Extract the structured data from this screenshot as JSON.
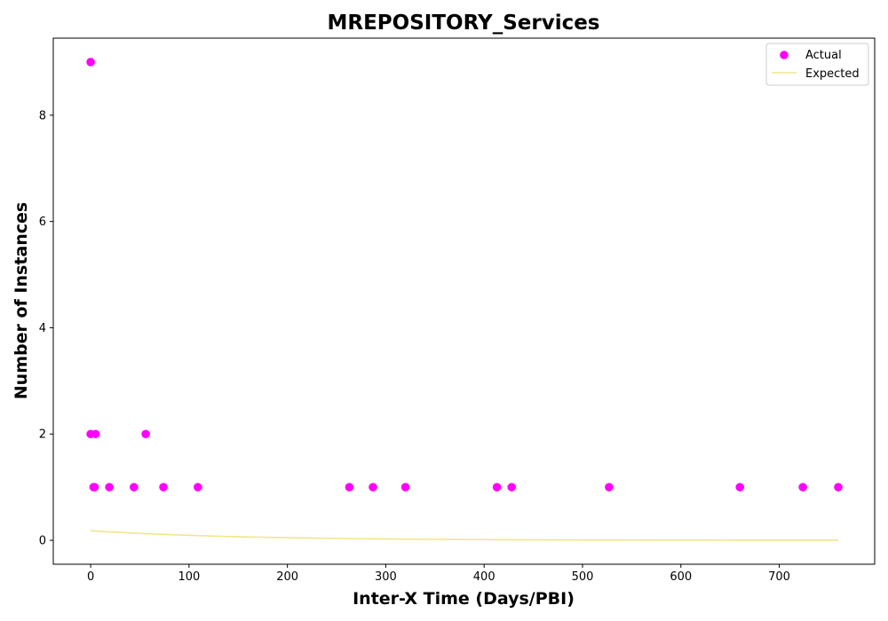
{
  "chart_data": {
    "type": "scatter",
    "title": "MREPOSITORY_Services",
    "xlabel": "Inter-X Time (Days/PBI)",
    "ylabel": "Number of Instances",
    "xlim": [
      -38,
      797
    ],
    "ylim": [
      -0.45,
      9.45
    ],
    "xticks": [
      0,
      100,
      200,
      300,
      400,
      500,
      600,
      700
    ],
    "yticks": [
      0,
      2,
      4,
      6,
      8
    ],
    "grid": false,
    "legend": {
      "placement": "top-right",
      "entries": [
        "Actual",
        "Expected"
      ]
    },
    "series": [
      {
        "name": "Actual",
        "kind": "scatter",
        "color": "#ff00ff",
        "points": [
          [
            0,
            9
          ],
          [
            0,
            2
          ],
          [
            4,
            1
          ],
          [
            5,
            2
          ],
          [
            3,
            1
          ],
          [
            19,
            1
          ],
          [
            44,
            1
          ],
          [
            56,
            2
          ],
          [
            74,
            1
          ],
          [
            109,
            1
          ],
          [
            263,
            1
          ],
          [
            287,
            1
          ],
          [
            320,
            1
          ],
          [
            413,
            1
          ],
          [
            428,
            1
          ],
          [
            527,
            1
          ],
          [
            660,
            1
          ],
          [
            724,
            1
          ],
          [
            760,
            1
          ]
        ]
      },
      {
        "name": "Expected",
        "kind": "line",
        "color": "#f0e68c",
        "decay_start": 0.18,
        "decay_rate": 0.0065,
        "x_start": 0,
        "x_end": 760
      }
    ]
  }
}
